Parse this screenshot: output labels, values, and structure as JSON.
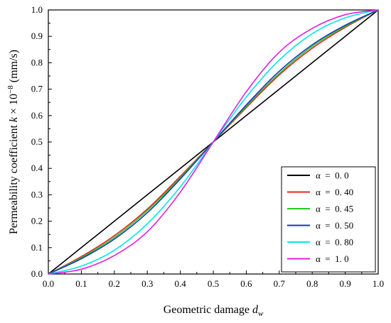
{
  "chart_data": {
    "type": "line",
    "xlabel_main": "Geometric damage ",
    "xlabel_var": "d",
    "xlabel_sub": "w",
    "ylabel_main": "Permeability coefficient ",
    "ylabel_var": "k",
    "ylabel_unit": " × 10",
    "ylabel_exp": "−8",
    "ylabel_tail": " (mm/s)",
    "xlim": [
      0,
      1
    ],
    "ylim": [
      0,
      1
    ],
    "xticks": [
      "0.0",
      "0.1",
      "0.2",
      "0.3",
      "0.4",
      "0.5",
      "0.6",
      "0.7",
      "0.8",
      "0.9",
      "1.0"
    ],
    "yticks": [
      "0.0",
      "0.1",
      "0.2",
      "0.3",
      "0.4",
      "0.5",
      "0.6",
      "0.7",
      "0.8",
      "0.9",
      "1.0"
    ],
    "grid": false,
    "legend_position": "bottom-right",
    "x": [
      0.0,
      0.1,
      0.2,
      0.3,
      0.4,
      0.5,
      0.6,
      0.7,
      0.8,
      0.9,
      1.0
    ],
    "series": [
      {
        "name": "α  =  0. 0",
        "color": "#000000",
        "values": [
          0.0,
          0.1,
          0.2,
          0.3,
          0.4,
          0.5,
          0.6,
          0.7,
          0.8,
          0.9,
          1.0
        ]
      },
      {
        "name": "α  =  0. 40",
        "color": "#e8231b",
        "values": [
          0.0,
          0.066,
          0.145,
          0.246,
          0.37,
          0.5,
          0.63,
          0.754,
          0.855,
          0.934,
          1.0
        ]
      },
      {
        "name": "α  =  0. 45",
        "color": "#22cc22",
        "values": [
          0.0,
          0.062,
          0.138,
          0.24,
          0.365,
          0.5,
          0.635,
          0.76,
          0.862,
          0.938,
          1.0
        ]
      },
      {
        "name": "α  =  0. 50",
        "color": "#1433c8",
        "values": [
          0.0,
          0.058,
          0.132,
          0.232,
          0.36,
          0.5,
          0.64,
          0.768,
          0.868,
          0.942,
          1.0
        ]
      },
      {
        "name": "α  =  0. 80",
        "color": "#00e8e8",
        "values": [
          0.0,
          0.03,
          0.09,
          0.19,
          0.33,
          0.5,
          0.67,
          0.81,
          0.91,
          0.97,
          1.0
        ]
      },
      {
        "name": "α  =  1. 0",
        "color": "#e01ee0",
        "values": [
          0.0,
          0.018,
          0.07,
          0.16,
          0.31,
          0.5,
          0.69,
          0.84,
          0.93,
          0.982,
          1.0
        ]
      }
    ]
  }
}
